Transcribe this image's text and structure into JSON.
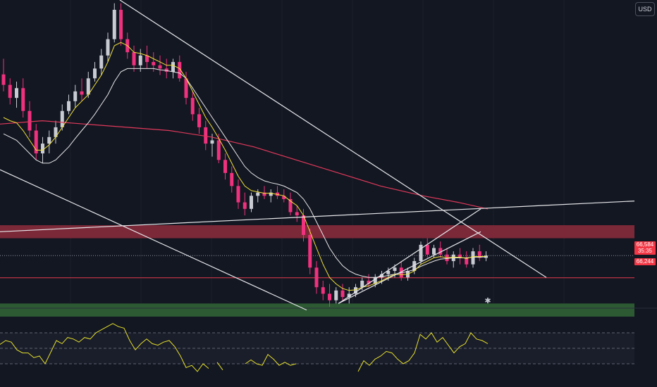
{
  "currency_label": "USD",
  "current_price": "66,584",
  "countdown": "35:35",
  "level_price": "66,244",
  "logo_icon": "tradingview-logo-icon",
  "colors": {
    "background": "#131722",
    "bull": "#c8cbd2",
    "bear": "#f0317d",
    "ema_fast": "#f2e23a",
    "ema_slow": "#e8e8e8",
    "ma_long": "#e0395a",
    "resistance_zone": "#8e2c3c",
    "support_zone": "#2e5e35",
    "rsi": "#e4e02c"
  },
  "chart_data": {
    "type": "candlestick",
    "price_ylim": [
      65800,
      70500
    ],
    "rsi_ylim": [
      0,
      100
    ],
    "candles": [
      [
        69360,
        69600,
        69100,
        69200
      ],
      [
        69200,
        69300,
        68900,
        69000
      ],
      [
        69000,
        69250,
        68850,
        69150
      ],
      [
        69150,
        69300,
        68700,
        68800
      ],
      [
        68800,
        68950,
        68400,
        68500
      ],
      [
        68500,
        68600,
        68050,
        68150
      ],
      [
        68150,
        68400,
        68000,
        68300
      ],
      [
        68300,
        68500,
        68150,
        68400
      ],
      [
        68400,
        68650,
        68300,
        68550
      ],
      [
        68550,
        68900,
        68500,
        68800
      ],
      [
        68800,
        69050,
        68750,
        68950
      ],
      [
        68950,
        69200,
        68850,
        69100
      ],
      [
        69100,
        69300,
        68950,
        69050
      ],
      [
        69050,
        69400,
        69000,
        69300
      ],
      [
        69300,
        69550,
        69250,
        69450
      ],
      [
        69450,
        69750,
        69350,
        69650
      ],
      [
        69650,
        70000,
        69550,
        69900
      ],
      [
        69900,
        70450,
        69850,
        70350
      ],
      [
        70350,
        70450,
        69800,
        69900
      ],
      [
        69900,
        70000,
        69600,
        69700
      ],
      [
        69700,
        69800,
        69400,
        69500
      ],
      [
        69500,
        69750,
        69400,
        69650
      ],
      [
        69650,
        69800,
        69450,
        69550
      ],
      [
        69550,
        69700,
        69400,
        69500
      ],
      [
        69500,
        69650,
        69350,
        69450
      ],
      [
        69450,
        69600,
        69300,
        69400
      ],
      [
        69400,
        69600,
        69300,
        69550
      ],
      [
        69550,
        69650,
        69250,
        69300
      ],
      [
        69300,
        69400,
        68900,
        69000
      ],
      [
        69000,
        69100,
        68650,
        68750
      ],
      [
        68750,
        68850,
        68450,
        68550
      ],
      [
        68550,
        68650,
        68200,
        68300
      ],
      [
        68300,
        68450,
        68100,
        68350
      ],
      [
        68350,
        68450,
        68000,
        68050
      ],
      [
        68050,
        68150,
        67750,
        67850
      ],
      [
        67850,
        67950,
        67550,
        67650
      ],
      [
        67650,
        67750,
        67300,
        67400
      ],
      [
        67400,
        67550,
        67200,
        67300
      ],
      [
        67300,
        67550,
        67250,
        67500
      ],
      [
        67500,
        67600,
        67400,
        67550
      ],
      [
        67550,
        67650,
        67450,
        67500
      ],
      [
        67500,
        67600,
        67400,
        67550
      ],
      [
        67550,
        67650,
        67450,
        67500
      ],
      [
        67500,
        67600,
        67400,
        67450
      ],
      [
        67450,
        67550,
        67200,
        67250
      ],
      [
        67250,
        67350,
        67100,
        67200
      ],
      [
        67200,
        67300,
        66800,
        66900
      ],
      [
        66900,
        67000,
        66300,
        66400
      ],
      [
        66400,
        66500,
        66000,
        66100
      ],
      [
        66100,
        66200,
        65900,
        66000
      ],
      [
        66000,
        66150,
        65800,
        65900
      ],
      [
        65900,
        66100,
        65850,
        66050
      ],
      [
        66050,
        66150,
        65900,
        65950
      ],
      [
        65950,
        66100,
        65850,
        66000
      ],
      [
        66000,
        66150,
        65950,
        66100
      ],
      [
        66100,
        66250,
        66050,
        66200
      ],
      [
        66200,
        66300,
        66100,
        66150
      ],
      [
        66150,
        66300,
        66100,
        66250
      ],
      [
        66250,
        66350,
        66150,
        66300
      ],
      [
        66300,
        66400,
        66200,
        66350
      ],
      [
        66350,
        66450,
        66250,
        66400
      ],
      [
        66400,
        66500,
        66200,
        66250
      ],
      [
        66250,
        66400,
        66200,
        66350
      ],
      [
        66350,
        66550,
        66300,
        66500
      ],
      [
        66500,
        66800,
        66450,
        66750
      ],
      [
        66750,
        66850,
        66550,
        66600
      ],
      [
        66600,
        66750,
        66550,
        66700
      ],
      [
        66700,
        66800,
        66550,
        66600
      ],
      [
        66600,
        66700,
        66450,
        66500
      ],
      [
        66500,
        66650,
        66400,
        66600
      ],
      [
        66600,
        66700,
        66450,
        66550
      ],
      [
        66550,
        66650,
        66400,
        66450
      ],
      [
        66450,
        66700,
        66400,
        66650
      ],
      [
        66650,
        66750,
        66500,
        66550
      ],
      [
        66550,
        66650,
        66500,
        66584
      ]
    ],
    "ema_fast": [
      68700,
      68650,
      68620,
      68500,
      68350,
      68200,
      68200,
      68280,
      68400,
      68550,
      68700,
      68850,
      68950,
      69050,
      69200,
      69350,
      69550,
      69800,
      69850,
      69800,
      69700,
      69680,
      69650,
      69600,
      69550,
      69500,
      69500,
      69450,
      69300,
      69100,
      68900,
      68700,
      68550,
      68380,
      68200,
      68000,
      67800,
      67650,
      67580,
      67560,
      67540,
      67540,
      67520,
      67500,
      67420,
      67350,
      67200,
      66950,
      66700,
      66450,
      66250,
      66150,
      66080,
      66050,
      66060,
      66100,
      66120,
      66160,
      66200,
      66250,
      66300,
      66290,
      66300,
      66350,
      66450,
      66500,
      66550,
      66570,
      66550,
      66560,
      66560,
      66540,
      66570,
      66570,
      66575
    ],
    "ema_slow": [
      68450,
      68400,
      68350,
      68250,
      68150,
      68050,
      68000,
      68000,
      68050,
      68150,
      68250,
      68380,
      68500,
      68620,
      68750,
      68900,
      69050,
      69250,
      69400,
      69450,
      69450,
      69450,
      69450,
      69450,
      69430,
      69420,
      69400,
      69380,
      69300,
      69150,
      69000,
      68850,
      68700,
      68550,
      68400,
      68250,
      68100,
      67950,
      67850,
      67780,
      67730,
      67700,
      67680,
      67650,
      67600,
      67550,
      67450,
      67300,
      67100,
      66900,
      66700,
      66550,
      66430,
      66350,
      66300,
      66270,
      66250,
      66250,
      66260,
      66280,
      66300,
      66320,
      66340,
      66370,
      66420,
      66460,
      66500,
      66530,
      66540,
      66550,
      66550,
      66550,
      66560,
      66560,
      66565
    ],
    "ma_long": [
      [
        0,
        68600
      ],
      [
        60,
        68650
      ],
      [
        120,
        68600
      ],
      [
        180,
        68550
      ],
      [
        240,
        68500
      ],
      [
        300,
        68400
      ],
      [
        360,
        68250
      ],
      [
        420,
        68050
      ],
      [
        480,
        67850
      ],
      [
        540,
        67650
      ],
      [
        600,
        67500
      ],
      [
        650,
        67400
      ],
      [
        692,
        67300
      ]
    ],
    "trendlines": [
      [
        [
          170,
          70500
        ],
        [
          775,
          66250
        ]
      ],
      [
        [
          0,
          67900
        ],
        [
          435,
          65750
        ]
      ],
      [
        [
          0,
          66950
        ],
        [
          900,
          67420
        ]
      ],
      [
        [
          480,
          65850
        ],
        [
          682,
          67300
        ]
      ],
      [
        [
          480,
          65850
        ],
        [
          682,
          66950
        ]
      ]
    ],
    "resistance_zone": [
      67050,
      66850
    ],
    "support_zone": [
      65850,
      65650
    ],
    "current_price_level": 66584,
    "horizontal_level": 66244,
    "rsi": [
      [
        0,
        55
      ],
      [
        8,
        60
      ],
      [
        16,
        58
      ],
      [
        24,
        48
      ],
      [
        32,
        44
      ],
      [
        40,
        44
      ],
      [
        48,
        38
      ],
      [
        56,
        40
      ],
      [
        64,
        30
      ],
      [
        72,
        45
      ],
      [
        80,
        60
      ],
      [
        88,
        56
      ],
      [
        96,
        64
      ],
      [
        104,
        62
      ],
      [
        112,
        58
      ],
      [
        120,
        64
      ],
      [
        128,
        62
      ],
      [
        136,
        70
      ],
      [
        144,
        74
      ],
      [
        152,
        78
      ],
      [
        160,
        82
      ],
      [
        168,
        78
      ],
      [
        176,
        76
      ],
      [
        184,
        60
      ],
      [
        192,
        48
      ],
      [
        200,
        56
      ],
      [
        208,
        62
      ],
      [
        216,
        56
      ],
      [
        224,
        54
      ],
      [
        232,
        58
      ],
      [
        240,
        60
      ],
      [
        248,
        52
      ],
      [
        256,
        40
      ],
      [
        264,
        25
      ],
      [
        272,
        28
      ],
      [
        280,
        20
      ],
      [
        288,
        30
      ],
      [
        296,
        24
      ],
      null,
      [
        308,
        32
      ],
      [
        316,
        22
      ],
      null,
      [
        348,
        30
      ],
      [
        356,
        35
      ],
      [
        364,
        30
      ],
      [
        372,
        28
      ],
      [
        380,
        42
      ],
      [
        388,
        36
      ],
      [
        396,
        28
      ],
      [
        404,
        32
      ],
      [
        412,
        28
      ],
      [
        420,
        30
      ],
      null,
      [
        508,
        20
      ],
      [
        516,
        34
      ],
      [
        524,
        28
      ],
      [
        532,
        36
      ],
      [
        540,
        40
      ],
      [
        548,
        46
      ],
      [
        556,
        44
      ],
      [
        564,
        36
      ],
      [
        572,
        30
      ],
      [
        580,
        34
      ],
      [
        588,
        44
      ],
      [
        596,
        68
      ],
      [
        604,
        62
      ],
      [
        612,
        70
      ],
      [
        620,
        58
      ],
      [
        628,
        64
      ],
      [
        636,
        54
      ],
      [
        644,
        44
      ],
      [
        652,
        52
      ],
      [
        660,
        56
      ],
      [
        668,
        70
      ],
      [
        676,
        62
      ],
      [
        684,
        60
      ],
      [
        692,
        56
      ]
    ]
  }
}
